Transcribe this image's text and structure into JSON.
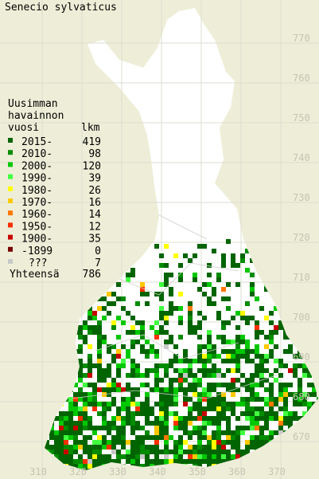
{
  "title": "Senecio sylvaticus",
  "legend": {
    "heading": [
      "Uusimman",
      "havainnon",
      "vuosi"
    ],
    "count_heading": "lkm",
    "items": [
      {
        "label": "2015-",
        "color": "#006400",
        "count": 419
      },
      {
        "label": "2010-",
        "color": "#008c00",
        "count": 98
      },
      {
        "label": "2000-",
        "color": "#00c800",
        "count": 120
      },
      {
        "label": "1990-",
        "color": "#40ff40",
        "count": 39
      },
      {
        "label": "1980-",
        "color": "#ffff00",
        "count": 26
      },
      {
        "label": "1970-",
        "color": "#ffc800",
        "count": 16
      },
      {
        "label": "1960-",
        "color": "#ff7800",
        "count": 14
      },
      {
        "label": "1950-",
        "color": "#ff3000",
        "count": 12
      },
      {
        "label": "1900-",
        "color": "#c80000",
        "count": 35
      },
      {
        "label": "-1899",
        "color": "#780000",
        "count": 0
      },
      {
        "label": "???",
        "color": "#c8c8c8",
        "count": 7
      }
    ],
    "total_label": "Yhteensä",
    "total": 786
  },
  "grid": {
    "northing": [
      770,
      760,
      750,
      740,
      730,
      720,
      710,
      700,
      690,
      680,
      670
    ],
    "easting": [
      310,
      320,
      330,
      340,
      350,
      360,
      370
    ]
  }
}
